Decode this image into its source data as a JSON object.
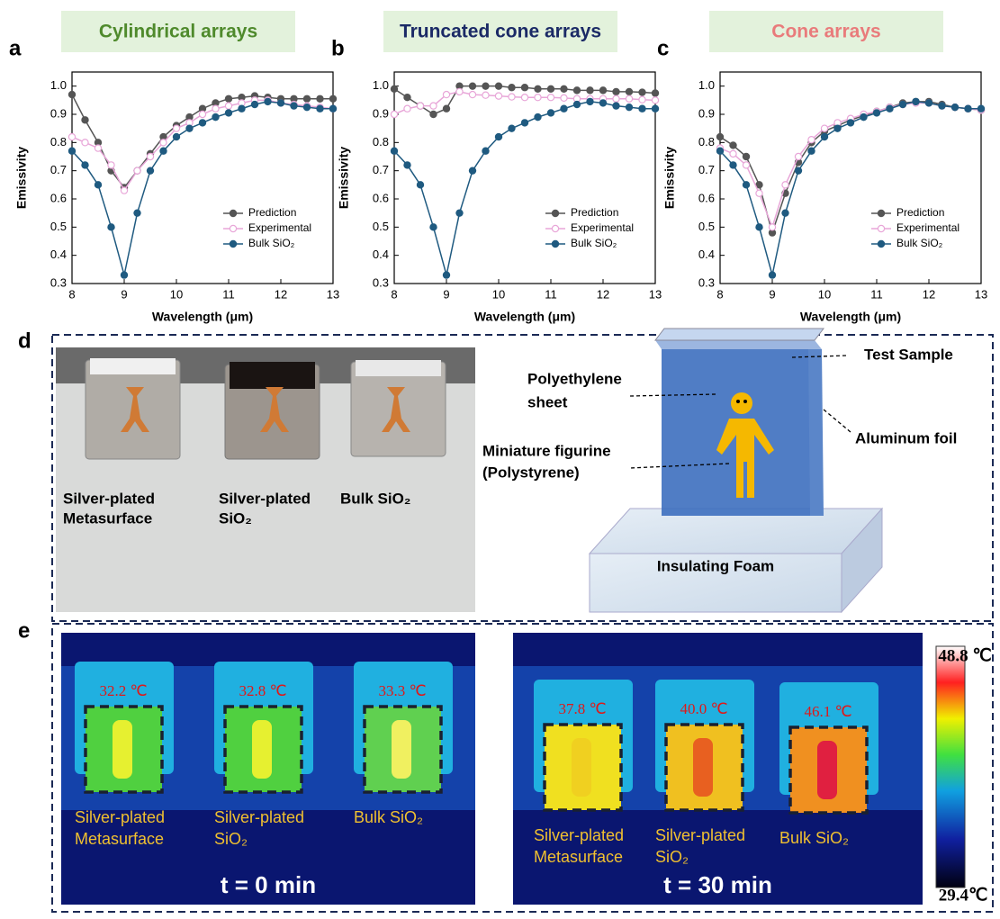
{
  "chart_data": [
    {
      "type": "line",
      "panel": "a",
      "title": "Cylindrical arrays",
      "title_color": "#4f8a2c",
      "xlabel": "Wavelength (μm)",
      "ylabel": "Emissivity",
      "x": [
        8,
        8.25,
        8.5,
        8.75,
        9,
        9.25,
        9.5,
        9.75,
        10,
        10.25,
        10.5,
        10.75,
        11,
        11.25,
        11.5,
        11.75,
        12,
        12.25,
        12.5,
        12.75,
        13
      ],
      "series": [
        {
          "name": "Prediction",
          "color": "#555555",
          "marker": "filled",
          "values": [
            0.97,
            0.88,
            0.8,
            0.7,
            0.64,
            0.7,
            0.76,
            0.82,
            0.86,
            0.89,
            0.92,
            0.94,
            0.955,
            0.96,
            0.965,
            0.96,
            0.955,
            0.955,
            0.955,
            0.955,
            0.955
          ]
        },
        {
          "name": "Experimental",
          "color": "#e8a6d8",
          "marker": "hollow",
          "values": [
            0.82,
            0.8,
            0.78,
            0.72,
            0.63,
            0.7,
            0.75,
            0.8,
            0.85,
            0.87,
            0.9,
            0.92,
            0.93,
            0.94,
            0.95,
            0.95,
            0.94,
            0.935,
            0.93,
            0.925,
            0.92
          ]
        },
        {
          "name": "Bulk SiO₂",
          "color": "#1f5a80",
          "marker": "ball",
          "values": [
            0.77,
            0.72,
            0.65,
            0.5,
            0.33,
            0.55,
            0.7,
            0.77,
            0.82,
            0.85,
            0.87,
            0.89,
            0.905,
            0.92,
            0.935,
            0.945,
            0.94,
            0.93,
            0.925,
            0.92,
            0.92
          ]
        }
      ],
      "xlim": [
        8,
        13
      ],
      "ylim": [
        0.3,
        1.05
      ],
      "xticks": [
        8,
        9,
        10,
        11,
        12,
        13
      ],
      "yticks": [
        0.3,
        0.4,
        0.5,
        0.6,
        0.7,
        0.8,
        0.9,
        {
          "value": 1,
          "label": "1.0"
        }
      ],
      "legend": "lower right"
    },
    {
      "type": "line",
      "panel": "b",
      "title": "Truncated cone arrays",
      "title_color": "#1b2a66",
      "xlabel": "Wavelength (μm)",
      "ylabel": "Emissivity",
      "x": [
        8,
        8.25,
        8.5,
        8.75,
        9,
        9.25,
        9.5,
        9.75,
        10,
        10.25,
        10.5,
        10.75,
        11,
        11.25,
        11.5,
        11.75,
        12,
        12.25,
        12.5,
        12.75,
        13
      ],
      "series": [
        {
          "name": "Prediction",
          "color": "#555555",
          "marker": "filled",
          "values": [
            0.99,
            0.96,
            0.93,
            0.9,
            0.92,
            1.0,
            1.0,
            1.0,
            1.0,
            0.995,
            0.995,
            0.99,
            0.99,
            0.99,
            0.985,
            0.985,
            0.985,
            0.98,
            0.98,
            0.978,
            0.975
          ]
        },
        {
          "name": "Experimental",
          "color": "#e8a6d8",
          "marker": "hollow",
          "values": [
            0.9,
            0.92,
            0.93,
            0.93,
            0.97,
            0.98,
            0.97,
            0.968,
            0.965,
            0.962,
            0.96,
            0.96,
            0.96,
            0.958,
            0.955,
            0.955,
            0.955,
            0.955,
            0.955,
            0.952,
            0.95
          ]
        },
        {
          "name": "Bulk SiO₂",
          "color": "#1f5a80",
          "marker": "ball",
          "values": [
            0.77,
            0.72,
            0.65,
            0.5,
            0.33,
            0.55,
            0.7,
            0.77,
            0.82,
            0.85,
            0.87,
            0.89,
            0.905,
            0.92,
            0.935,
            0.945,
            0.94,
            0.93,
            0.925,
            0.92,
            0.92
          ]
        }
      ],
      "xlim": [
        8,
        13
      ],
      "ylim": [
        0.3,
        1.05
      ],
      "xticks": [
        8,
        9,
        10,
        11,
        12,
        13
      ],
      "yticks": [
        0.3,
        0.4,
        0.5,
        0.6,
        0.7,
        0.8,
        0.9,
        {
          "value": 1,
          "label": "1.0"
        }
      ],
      "legend": "lower right"
    },
    {
      "type": "line",
      "panel": "c",
      "title": "Cone arrays",
      "title_color": "#e97b7b",
      "xlabel": "Wavelength (μm)",
      "ylabel": "Emissivity",
      "x": [
        8,
        8.25,
        8.5,
        8.75,
        9,
        9.25,
        9.5,
        9.75,
        10,
        10.25,
        10.5,
        10.75,
        11,
        11.25,
        11.5,
        11.75,
        12,
        12.25,
        12.5,
        12.75,
        13
      ],
      "series": [
        {
          "name": "Prediction",
          "color": "#555555",
          "marker": "filled",
          "values": [
            0.82,
            0.79,
            0.75,
            0.65,
            0.48,
            0.62,
            0.73,
            0.8,
            0.84,
            0.86,
            0.88,
            0.895,
            0.91,
            0.925,
            0.94,
            0.945,
            0.945,
            0.935,
            0.925,
            0.92,
            0.915
          ]
        },
        {
          "name": "Experimental",
          "color": "#e8a6d8",
          "marker": "hollow",
          "values": [
            0.78,
            0.76,
            0.72,
            0.62,
            0.5,
            0.65,
            0.75,
            0.81,
            0.85,
            0.87,
            0.885,
            0.9,
            0.91,
            0.925,
            0.935,
            0.94,
            0.94,
            0.93,
            0.925,
            0.92,
            0.915
          ]
        },
        {
          "name": "Bulk SiO₂",
          "color": "#1f5a80",
          "marker": "ball",
          "values": [
            0.77,
            0.72,
            0.65,
            0.5,
            0.33,
            0.55,
            0.7,
            0.77,
            0.82,
            0.85,
            0.87,
            0.89,
            0.905,
            0.92,
            0.935,
            0.945,
            0.94,
            0.93,
            0.925,
            0.92,
            0.92
          ]
        }
      ],
      "xlim": [
        8,
        13
      ],
      "ylim": [
        0.3,
        1.05
      ],
      "xticks": [
        8,
        9,
        10,
        11,
        12,
        13
      ],
      "yticks": [
        0.3,
        0.4,
        0.5,
        0.6,
        0.7,
        0.8,
        0.9,
        {
          "value": 1,
          "label": "1.0"
        }
      ],
      "legend": "lower right"
    }
  ],
  "panel_d": {
    "label": "d",
    "photo_labels": [
      [
        "Silver-plated",
        "Metasurface"
      ],
      [
        "Silver-plated",
        "SiO₂"
      ],
      [
        "Bulk SiO₂"
      ]
    ],
    "schematic": {
      "test_sample": "Test Sample",
      "sheet": [
        "Polyethylene",
        "sheet"
      ],
      "foil": "Aluminum foil",
      "figurine": [
        "Miniature figurine",
        "(Polystyrene)"
      ],
      "foam": "Insulating Foam"
    }
  },
  "panel_e": {
    "label": "e",
    "images": [
      {
        "time": "t = 0 min",
        "temps": [
          "32.2 ℃",
          "32.8 ℃",
          "33.3 ℃"
        ]
      },
      {
        "time": "t = 30 min",
        "temps": [
          "37.8 ℃",
          "40.0 ℃",
          "46.1 ℃"
        ]
      }
    ],
    "sample_labels": [
      [
        "Silver-plated",
        "Metasurface"
      ],
      [
        "Silver-plated",
        "SiO₂"
      ],
      [
        "Bulk SiO₂"
      ]
    ],
    "colorbar": {
      "max": "48.8 ℃",
      "min": "29.4℃"
    }
  }
}
